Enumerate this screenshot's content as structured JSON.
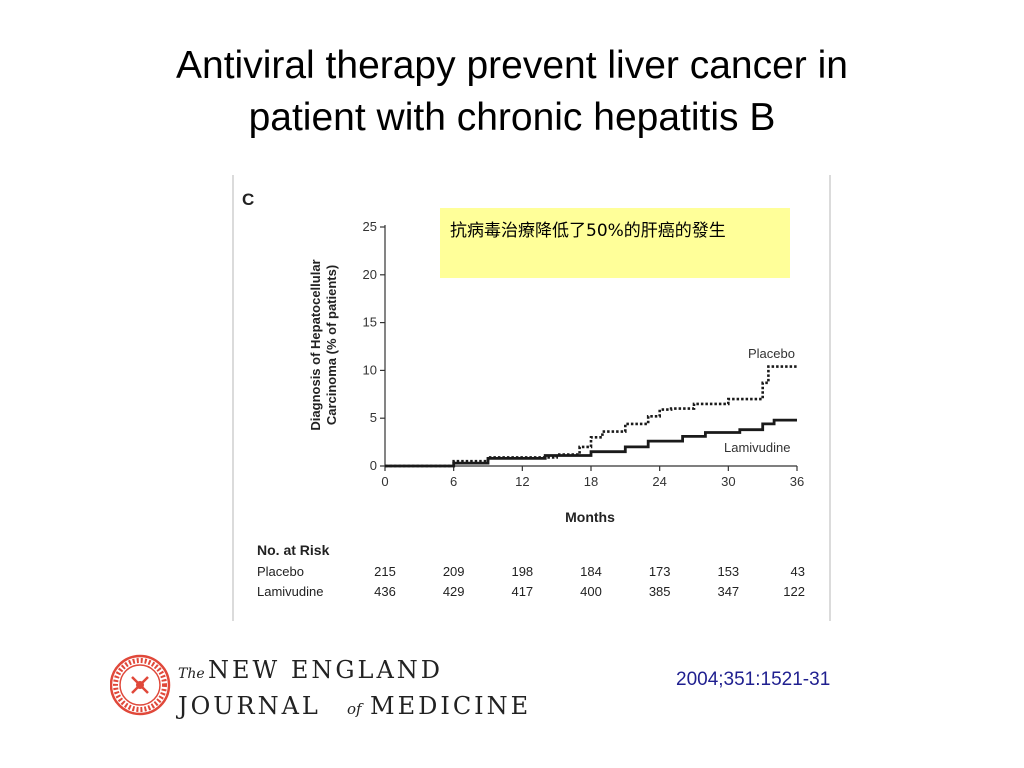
{
  "slide": {
    "title_line1": "Antiviral therapy prevent liver cancer in",
    "title_line2": "patient with chronic hepatitis B",
    "callout_text": "抗病毒治療降低了50%的肝癌的發生",
    "journal": {
      "line1_prefix": "The",
      "line1": "NEW ENGLAND",
      "line2a": "JOURNAL",
      "line2_of": "of",
      "line2b": "MEDICINE",
      "seal_text": "MEDICINE · NEW ENGLAND JOURNAL OF",
      "seal_colors": "#e0483a"
    },
    "citation": "2004;351:1521-31"
  },
  "chart_data": {
    "type": "line",
    "panel_label": "C",
    "xlabel": "Months",
    "ylabel_line1": "Diagnosis of Hepatocellular",
    "ylabel_line2": "Carcinoma (% of patients)",
    "xlim": [
      0,
      36
    ],
    "ylim": [
      0,
      25
    ],
    "x_ticks": [
      0,
      6,
      12,
      18,
      24,
      30,
      36
    ],
    "y_ticks": [
      0,
      5,
      10,
      15,
      20,
      25
    ],
    "series": [
      {
        "name": "Placebo",
        "style": "dotted",
        "color": "#1a1a1a",
        "points": [
          [
            0,
            0
          ],
          [
            6,
            0
          ],
          [
            6,
            0.5
          ],
          [
            9,
            0.5
          ],
          [
            9,
            0.9
          ],
          [
            15,
            0.9
          ],
          [
            15,
            1.2
          ],
          [
            17,
            1.2
          ],
          [
            17,
            2
          ],
          [
            18,
            2
          ],
          [
            18,
            3
          ],
          [
            19,
            3
          ],
          [
            19,
            3.6
          ],
          [
            21,
            3.6
          ],
          [
            21,
            4.4
          ],
          [
            23,
            4.4
          ],
          [
            23,
            5.2
          ],
          [
            24,
            5.2
          ],
          [
            24,
            5.9
          ],
          [
            25,
            5.9
          ],
          [
            25,
            6
          ],
          [
            27,
            6
          ],
          [
            27,
            6.5
          ],
          [
            30,
            6.5
          ],
          [
            30,
            7
          ],
          [
            33,
            7
          ],
          [
            33,
            8.7
          ],
          [
            33.5,
            8.7
          ],
          [
            33.5,
            10.4
          ],
          [
            36,
            10.4
          ]
        ]
      },
      {
        "name": "Lamivudine",
        "style": "solid",
        "color": "#1a1a1a",
        "points": [
          [
            0,
            0
          ],
          [
            6,
            0
          ],
          [
            6,
            0.3
          ],
          [
            9,
            0.3
          ],
          [
            9,
            0.8
          ],
          [
            14,
            0.8
          ],
          [
            14,
            1.1
          ],
          [
            18,
            1.1
          ],
          [
            18,
            1.5
          ],
          [
            21,
            1.5
          ],
          [
            21,
            2
          ],
          [
            23,
            2
          ],
          [
            23,
            2.6
          ],
          [
            26,
            2.6
          ],
          [
            26,
            3.1
          ],
          [
            28,
            3.1
          ],
          [
            28,
            3.5
          ],
          [
            31,
            3.5
          ],
          [
            31,
            3.8
          ],
          [
            33,
            3.8
          ],
          [
            33,
            4.4
          ],
          [
            34,
            4.4
          ],
          [
            34,
            4.8
          ],
          [
            36,
            4.8
          ]
        ]
      }
    ],
    "risk_table": {
      "header": "No. at Risk",
      "rows": [
        {
          "label": "Placebo",
          "values": [
            "215",
            "209",
            "198",
            "184",
            "173",
            "153",
            "43"
          ]
        },
        {
          "label": "Lamivudine",
          "values": [
            "436",
            "429",
            "417",
            "400",
            "385",
            "347",
            "122"
          ]
        }
      ]
    },
    "grid": false,
    "legend": "inline-labels"
  }
}
